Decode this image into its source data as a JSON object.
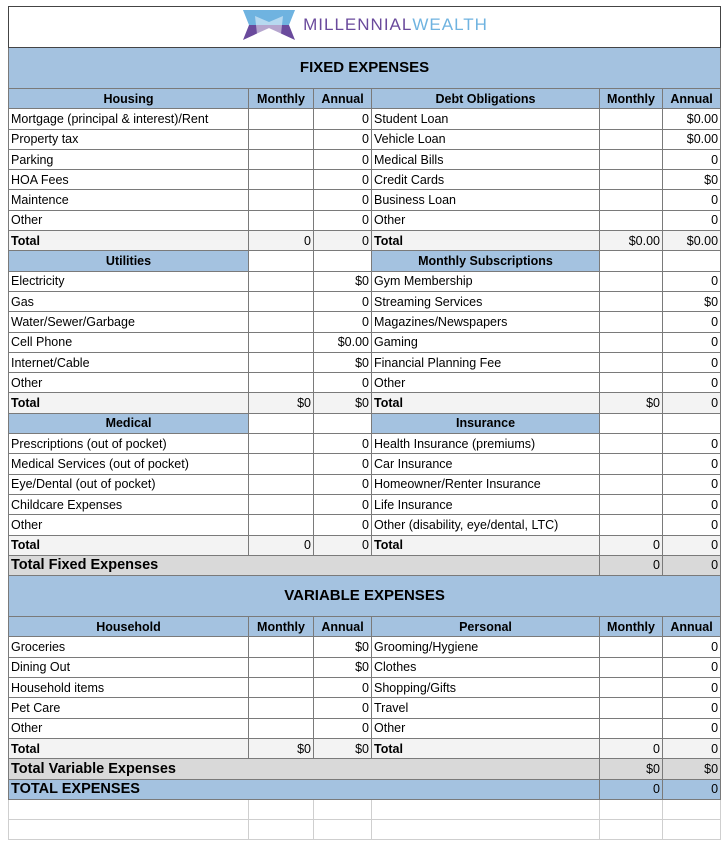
{
  "brand": {
    "name_part1": "MILLENNIAL",
    "name_part2": "WEALTH",
    "colors": {
      "purple": "#6a4a9c",
      "blue": "#6fb3e0"
    }
  },
  "colors": {
    "header_blue": "#a4c2e0",
    "total_gray": "#f3f3f3",
    "grand_gray": "#d9d9d9"
  },
  "fixed": {
    "title": "FIXED EXPENSES",
    "rows": [
      {
        "type": "header_full",
        "left": [
          "Housing",
          "Monthly",
          "Annual"
        ],
        "right": [
          "Debt Obligations",
          "Monthly",
          "Annual"
        ]
      },
      {
        "type": "item",
        "left": [
          "Mortgage (principal & interest)/Rent",
          "",
          "0"
        ],
        "right": [
          "Student Loan",
          "",
          "$0.00"
        ]
      },
      {
        "type": "item",
        "left": [
          "Property tax",
          "",
          "0"
        ],
        "right": [
          "Vehicle Loan",
          "",
          "$0.00"
        ]
      },
      {
        "type": "item",
        "left": [
          "Parking",
          "",
          "0"
        ],
        "right": [
          "Medical Bills",
          "",
          "0"
        ]
      },
      {
        "type": "item",
        "left": [
          "HOA Fees",
          "",
          "0"
        ],
        "right": [
          "Credit Cards",
          "",
          "$0"
        ]
      },
      {
        "type": "item",
        "left": [
          "Maintence",
          "",
          "0"
        ],
        "right": [
          "Business Loan",
          "",
          "0"
        ]
      },
      {
        "type": "item",
        "left": [
          "Other",
          "",
          "0"
        ],
        "right": [
          "Other",
          "",
          "0"
        ]
      },
      {
        "type": "total",
        "left": [
          "Total",
          "0",
          "0"
        ],
        "right": [
          "Total",
          "$0.00",
          "$0.00"
        ]
      },
      {
        "type": "header",
        "left": [
          "Utilities",
          "",
          ""
        ],
        "right": [
          "Monthly Subscriptions",
          "",
          ""
        ]
      },
      {
        "type": "item",
        "left": [
          "Electricity",
          "",
          "$0"
        ],
        "right": [
          "Gym Membership",
          "",
          "0"
        ]
      },
      {
        "type": "item",
        "left": [
          "Gas",
          "",
          "0"
        ],
        "right": [
          "Streaming Services",
          "",
          "$0"
        ]
      },
      {
        "type": "item",
        "left": [
          "Water/Sewer/Garbage",
          "",
          "0"
        ],
        "right": [
          "Magazines/Newspapers",
          "",
          "0"
        ]
      },
      {
        "type": "item",
        "left": [
          "Cell Phone",
          "",
          "$0.00"
        ],
        "right": [
          "Gaming",
          "",
          "0"
        ]
      },
      {
        "type": "item",
        "left": [
          "Internet/Cable",
          "",
          "$0"
        ],
        "right": [
          "Financial Planning Fee",
          "",
          "0"
        ]
      },
      {
        "type": "item",
        "left": [
          "Other",
          "",
          "0"
        ],
        "right": [
          "Other",
          "",
          "0"
        ]
      },
      {
        "type": "total",
        "left": [
          "Total",
          "$0",
          "$0"
        ],
        "right": [
          "Total",
          "$0",
          "0"
        ]
      },
      {
        "type": "header",
        "left": [
          "Medical",
          "",
          ""
        ],
        "right": [
          "Insurance",
          "",
          ""
        ]
      },
      {
        "type": "item",
        "left": [
          "Prescriptions (out of pocket)",
          "",
          "0"
        ],
        "right": [
          "Health Insurance (premiums)",
          "",
          "0"
        ]
      },
      {
        "type": "item",
        "left": [
          "Medical Services (out of pocket)",
          "",
          "0"
        ],
        "right": [
          "Car Insurance",
          "",
          "0"
        ]
      },
      {
        "type": "item",
        "left": [
          "Eye/Dental (out of pocket)",
          "",
          "0"
        ],
        "right": [
          "Homeowner/Renter Insurance",
          "",
          "0"
        ]
      },
      {
        "type": "item",
        "left": [
          "Childcare Expenses",
          "",
          "0"
        ],
        "right": [
          "Life Insurance",
          "",
          "0"
        ]
      },
      {
        "type": "item",
        "left": [
          "Other",
          "",
          "0"
        ],
        "right": [
          "Other (disability, eye/dental, LTC)",
          "",
          "0"
        ]
      },
      {
        "type": "total",
        "left": [
          "Total",
          "0",
          "0"
        ],
        "right": [
          "Total",
          "0",
          "0"
        ]
      }
    ],
    "summary": {
      "label": "Total Fixed Expenses",
      "monthly": "0",
      "annual": "0"
    }
  },
  "variable": {
    "title": "VARIABLE EXPENSES",
    "rows": [
      {
        "type": "header_full",
        "left": [
          "Household",
          "Monthly",
          "Annual"
        ],
        "right": [
          "Personal",
          "Monthly",
          "Annual"
        ]
      },
      {
        "type": "item",
        "left": [
          "Groceries",
          "",
          "$0"
        ],
        "right": [
          "Grooming/Hygiene",
          "",
          "0"
        ]
      },
      {
        "type": "item",
        "left": [
          "Dining Out",
          "",
          "$0"
        ],
        "right": [
          "Clothes",
          "",
          "0"
        ]
      },
      {
        "type": "item",
        "left": [
          "Household items",
          "",
          "0"
        ],
        "right": [
          "Shopping/Gifts",
          "",
          "0"
        ]
      },
      {
        "type": "item",
        "left": [
          "Pet Care",
          "",
          "0"
        ],
        "right": [
          "Travel",
          "",
          "0"
        ]
      },
      {
        "type": "item",
        "left": [
          "Other",
          "",
          "0"
        ],
        "right": [
          "Other",
          "",
          "0"
        ]
      },
      {
        "type": "total",
        "left": [
          "Total",
          "$0",
          "$0"
        ],
        "right": [
          "Total",
          "0",
          "0"
        ]
      }
    ],
    "summary": {
      "label": "Total Variable Expenses",
      "monthly": "$0",
      "annual": "$0"
    }
  },
  "grand_total": {
    "label": "TOTAL EXPENSES",
    "monthly": "0",
    "annual": "0"
  }
}
